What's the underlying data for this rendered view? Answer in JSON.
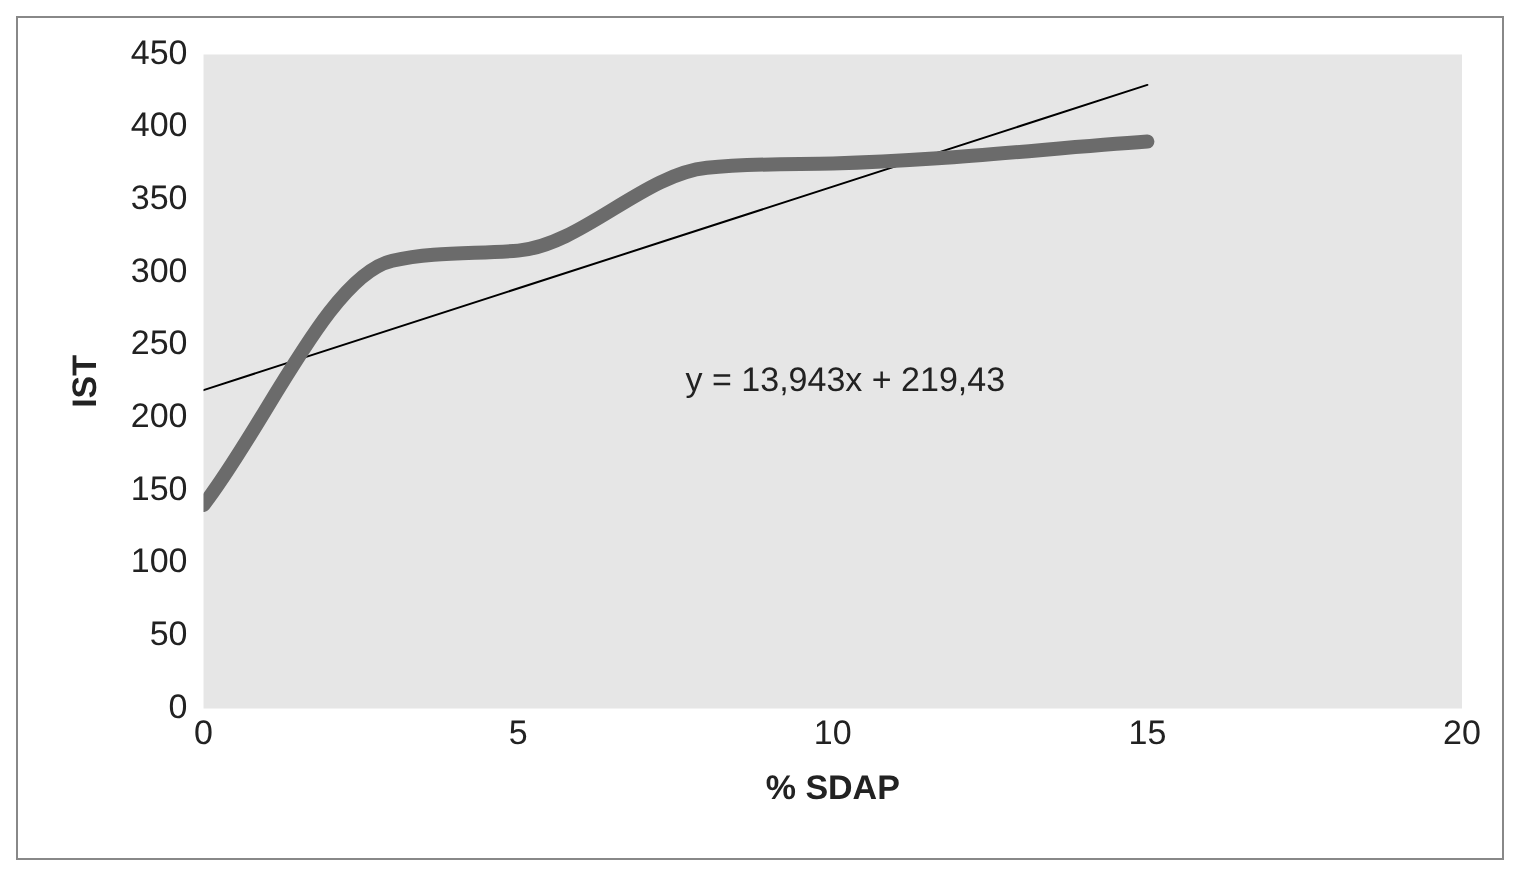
{
  "chart_data": {
    "type": "line",
    "xlabel": "% SDAP",
    "ylabel": "IST",
    "series": [
      {
        "color": "#6b6b6b",
        "x": [
          0,
          3,
          5,
          8,
          10,
          15
        ],
        "values": [
          140,
          308,
          315,
          372,
          375,
          390
        ]
      },
      {
        "type": "line",
        "color": "#000000",
        "x": [
          0,
          15
        ],
        "values": [
          219,
          429
        ]
      }
    ],
    "xlim": [
      0,
      20
    ],
    "xticks": [
      0,
      5,
      10,
      15,
      20
    ],
    "ylim": [
      0,
      450
    ],
    "yticks": [
      0,
      50,
      100,
      150,
      200,
      250,
      300,
      350,
      400,
      450
    ],
    "grid": false,
    "legend": false,
    "marker": "none",
    "line_style": "solid",
    "annotations": [
      "y = 13,943x + 219,43"
    ]
  }
}
